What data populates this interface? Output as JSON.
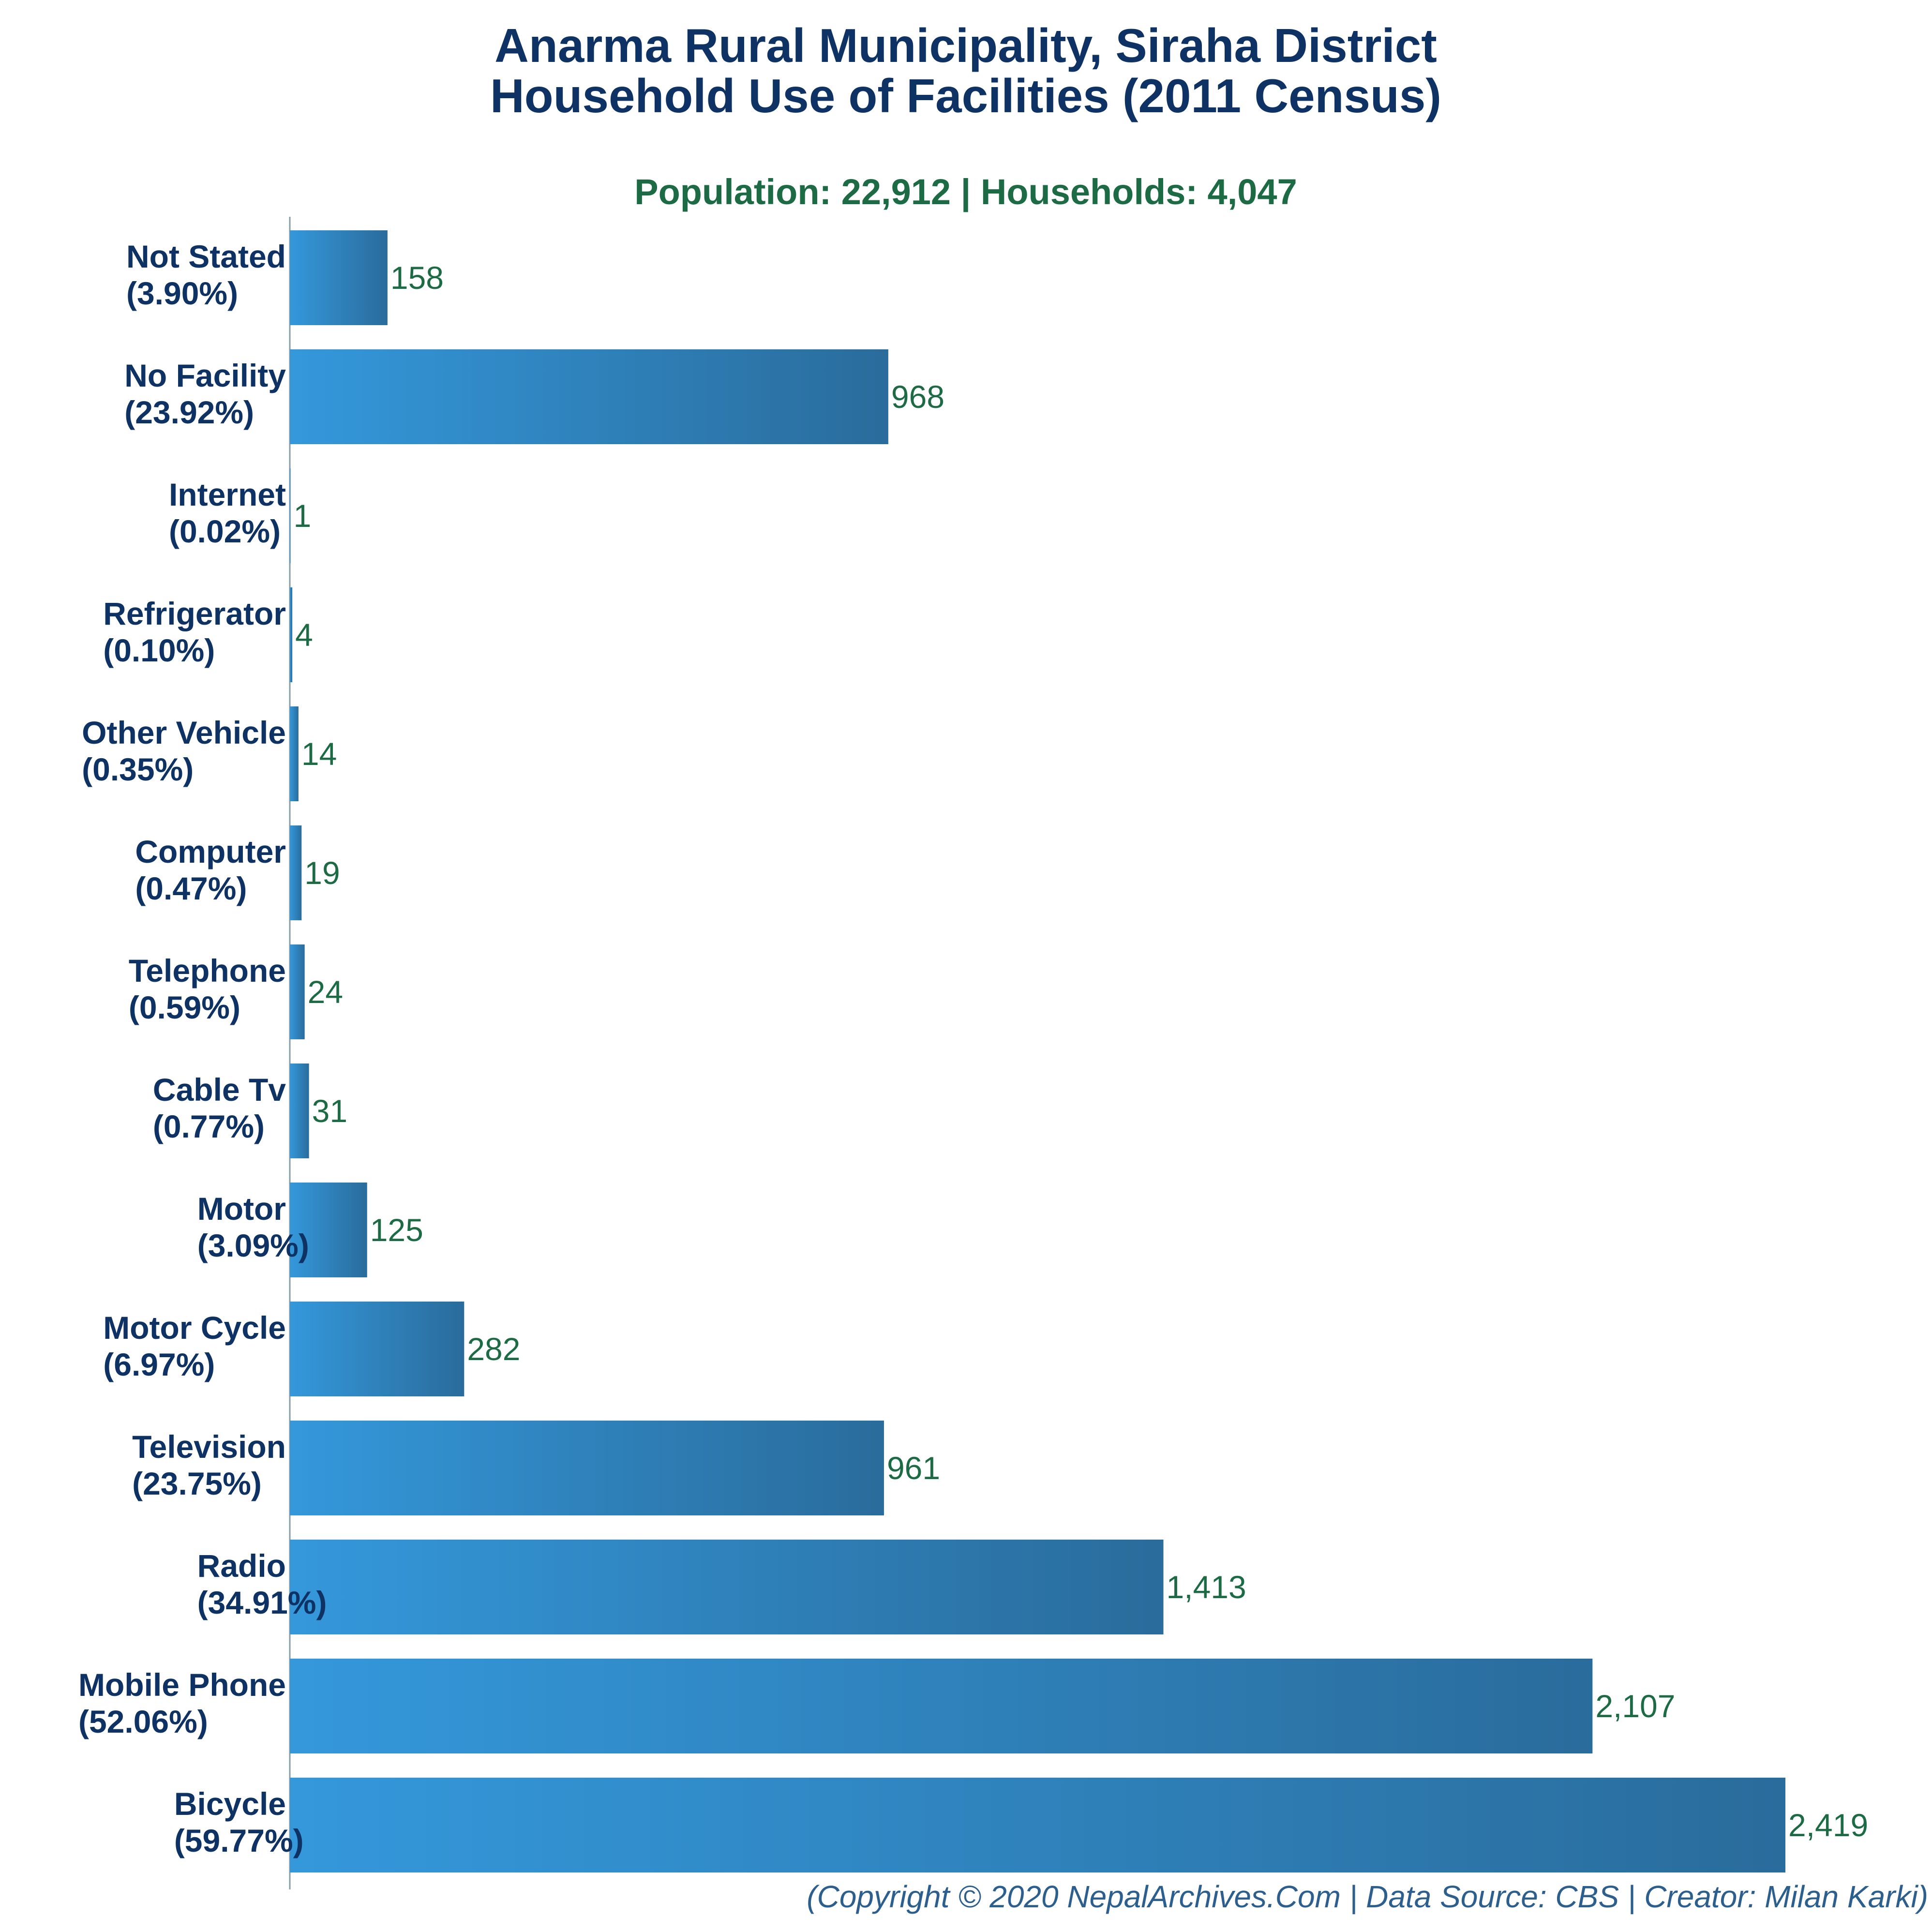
{
  "colors": {
    "title": "#0d3263",
    "subtitle": "#1d6b45",
    "bar_light": "#3498db",
    "bar_dark": "#2a6c9c",
    "value_label": "#1d6b45",
    "footer": "#2d5f8e",
    "axis": "#8a9ba8"
  },
  "chart_data": {
    "type": "bar",
    "orientation": "horizontal",
    "title": "Anarma Rural Municipality, Siraha District",
    "title_line2": "Household Use of Facilities (2011 Census)",
    "subtitle": "Population: 22,912 | Households: 4,047",
    "xlabel": "",
    "ylabel": "",
    "xlim": [
      0,
      2500
    ],
    "grid": false,
    "legend": "none",
    "categories": [
      "Not Stated",
      "No Facility",
      "Internet",
      "Refrigerator",
      "Other Vehicle",
      "Computer",
      "Telephone",
      "Cable Tv",
      "Motor",
      "Motor Cycle",
      "Television",
      "Radio",
      "Mobile Phone",
      "Bicycle"
    ],
    "percent_labels": [
      "(3.90%)",
      "(23.92%)",
      "(0.02%)",
      "(0.10%)",
      "(0.35%)",
      "(0.47%)",
      "(0.59%)",
      "(0.77%)",
      "(3.09%)",
      "(6.97%)",
      "(23.75%)",
      "(34.91%)",
      "(52.06%)",
      "(59.77%)"
    ],
    "values": [
      158,
      968,
      1,
      4,
      14,
      19,
      24,
      31,
      125,
      282,
      961,
      1413,
      2107,
      2419
    ],
    "value_labels": [
      "158",
      "968",
      "1",
      "4",
      "14",
      "19",
      "24",
      "31",
      "125",
      "282",
      "961",
      "1,413",
      "2,107",
      "2,419"
    ]
  },
  "footer": "(Copyright © 2020 NepalArchives.Com | Data Source: CBS | Creator: Milan Karki)"
}
